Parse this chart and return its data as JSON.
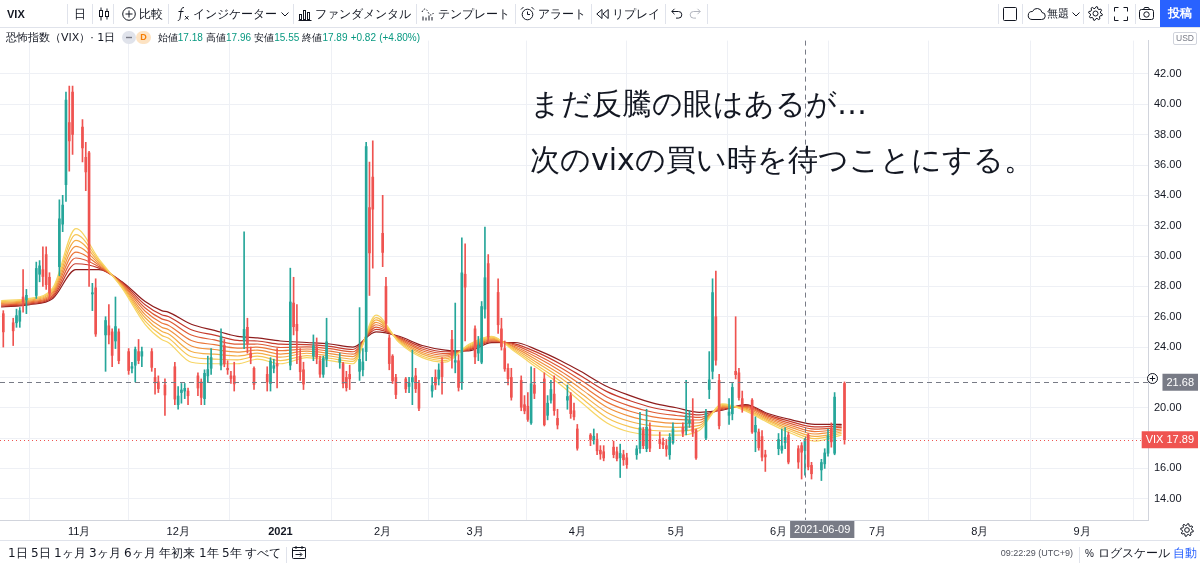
{
  "chart_data": {
    "type": "candlestick",
    "title": "恐怖指数（VIX）· 1日",
    "subtitle": "始値17.18 高値17.96 安値15.55 終値17.89 +0.82 (+4.80%)",
    "x": [
      "2020-10-09",
      "2020-10-12",
      "2020-10-13",
      "2020-10-14",
      "2020-10-15",
      "2020-10-16",
      "2020-10-19",
      "2020-10-20",
      "2020-10-21",
      "2020-10-22",
      "2020-10-23",
      "2020-10-26",
      "2020-10-27",
      "2020-10-28",
      "2020-10-29",
      "2020-10-30",
      "2020-11-02",
      "2020-11-03",
      "2020-11-04",
      "2020-11-05",
      "2020-11-06",
      "2020-11-09",
      "2020-11-10",
      "2020-11-11",
      "2020-11-12",
      "2020-11-13",
      "2020-11-16",
      "2020-11-17",
      "2020-11-18",
      "2020-11-19",
      "2020-11-20",
      "2020-11-23",
      "2020-11-24",
      "2020-11-25",
      "2020-11-27",
      "2020-11-30",
      "2020-12-01",
      "2020-12-02",
      "2020-12-03",
      "2020-12-04",
      "2020-12-07",
      "2020-12-08",
      "2020-12-09",
      "2020-12-10",
      "2020-12-11",
      "2020-12-14",
      "2020-12-15",
      "2020-12-16",
      "2020-12-17",
      "2020-12-18",
      "2020-12-21",
      "2020-12-22",
      "2020-12-23",
      "2020-12-24",
      "2020-12-28",
      "2020-12-29",
      "2020-12-30",
      "2020-12-31",
      "2021-01-04",
      "2021-01-05",
      "2021-01-06",
      "2021-01-07",
      "2021-01-08",
      "2021-01-11",
      "2021-01-12",
      "2021-01-13",
      "2021-01-14",
      "2021-01-15",
      "2021-01-19",
      "2021-01-20",
      "2021-01-21",
      "2021-01-22",
      "2021-01-25",
      "2021-01-26",
      "2021-01-27",
      "2021-01-28",
      "2021-01-29",
      "2021-02-01",
      "2021-02-02",
      "2021-02-03",
      "2021-02-04",
      "2021-02-05",
      "2021-02-08",
      "2021-02-09",
      "2021-02-10",
      "2021-02-11",
      "2021-02-12",
      "2021-02-16",
      "2021-02-17",
      "2021-02-18",
      "2021-02-19",
      "2021-02-22",
      "2021-02-23",
      "2021-02-24",
      "2021-02-25",
      "2021-02-26",
      "2021-03-01",
      "2021-03-02",
      "2021-03-03",
      "2021-03-04",
      "2021-03-05",
      "2021-03-08",
      "2021-03-09",
      "2021-03-10",
      "2021-03-11",
      "2021-03-12",
      "2021-03-15",
      "2021-03-16",
      "2021-03-17",
      "2021-03-18",
      "2021-03-19",
      "2021-03-22",
      "2021-03-23",
      "2021-03-24",
      "2021-03-25",
      "2021-03-26",
      "2021-03-29",
      "2021-03-30",
      "2021-03-31",
      "2021-04-01",
      "2021-04-05",
      "2021-04-06",
      "2021-04-07",
      "2021-04-08",
      "2021-04-09",
      "2021-04-12",
      "2021-04-13",
      "2021-04-14",
      "2021-04-15",
      "2021-04-16",
      "2021-04-19",
      "2021-04-20",
      "2021-04-21",
      "2021-04-22",
      "2021-04-23",
      "2021-04-26",
      "2021-04-27",
      "2021-04-28",
      "2021-04-29",
      "2021-04-30",
      "2021-05-03",
      "2021-05-04",
      "2021-05-05",
      "2021-05-06",
      "2021-05-07",
      "2021-05-10",
      "2021-05-11",
      "2021-05-12",
      "2021-05-13",
      "2021-05-14",
      "2021-05-17",
      "2021-05-18",
      "2021-05-19",
      "2021-05-20",
      "2021-05-21",
      "2021-05-24",
      "2021-05-25",
      "2021-05-26",
      "2021-05-27",
      "2021-05-28",
      "2021-06-01",
      "2021-06-02",
      "2021-06-03",
      "2021-06-04",
      "2021-06-07",
      "2021-06-08",
      "2021-06-09",
      "2021-06-10",
      "2021-06-11",
      "2021-06-14",
      "2021-06-15",
      "2021-06-16",
      "2021-06-17",
      "2021-06-18",
      "2021-06-21"
    ],
    "ohlc": [
      [
        26.2,
        26.4,
        24.0,
        25.0
      ],
      [
        25.6,
        25.9,
        24.1,
        25.07
      ],
      [
        25.6,
        26.5,
        25.3,
        26.07
      ],
      [
        25.7,
        26.6,
        25.3,
        26.4
      ],
      [
        27.3,
        29.1,
        26.3,
        26.97
      ],
      [
        27.1,
        27.8,
        26.2,
        27.41
      ],
      [
        27.4,
        29.6,
        27.2,
        29.18
      ],
      [
        28.8,
        29.7,
        28.3,
        29.35
      ],
      [
        29.1,
        30.6,
        28.0,
        28.65
      ],
      [
        30.1,
        30.6,
        27.8,
        28.11
      ],
      [
        28.6,
        28.9,
        27.2,
        27.55
      ],
      [
        29.3,
        33.7,
        28.7,
        32.46
      ],
      [
        32.1,
        34.0,
        31.6,
        33.35
      ],
      [
        34.7,
        40.8,
        33.6,
        40.28
      ],
      [
        38.8,
        41.2,
        35.6,
        37.59
      ],
      [
        40.8,
        41.2,
        36.7,
        38.02
      ],
      [
        38.5,
        39.0,
        36.2,
        37.13
      ],
      [
        36.5,
        37.5,
        34.3,
        35.55
      ],
      [
        36.8,
        36.9,
        28.0,
        29.57
      ],
      [
        27.5,
        28.2,
        26.4,
        27.58
      ],
      [
        27.9,
        28.5,
        24.7,
        24.86
      ],
      [
        24.8,
        26.0,
        22.4,
        25.75
      ],
      [
        25.4,
        26.8,
        24.2,
        24.8
      ],
      [
        25.0,
        25.2,
        22.7,
        23.45
      ],
      [
        24.4,
        27.3,
        23.9,
        25.35
      ],
      [
        25.0,
        25.2,
        22.9,
        23.1
      ],
      [
        23.7,
        23.9,
        22.2,
        22.45
      ],
      [
        22.6,
        23.0,
        22.3,
        22.71
      ],
      [
        22.8,
        24.0,
        21.7,
        23.84
      ],
      [
        23.7,
        24.5,
        22.9,
        23.11
      ],
      [
        23.4,
        24.0,
        22.7,
        23.7
      ],
      [
        23.7,
        23.9,
        22.4,
        22.66
      ],
      [
        22.0,
        22.6,
        20.9,
        21.64
      ],
      [
        21.7,
        22.1,
        21.0,
        21.25
      ],
      [
        21.5,
        21.9,
        19.5,
        20.84
      ],
      [
        22.7,
        23.0,
        20.2,
        20.57
      ],
      [
        20.2,
        21.4,
        19.9,
        20.77
      ],
      [
        21.0,
        21.6,
        20.3,
        21.17
      ],
      [
        21.1,
        21.6,
        20.6,
        21.28
      ],
      [
        21.1,
        21.3,
        20.2,
        20.79
      ],
      [
        22.1,
        22.3,
        20.8,
        21.3
      ],
      [
        21.7,
        21.9,
        20.2,
        20.68
      ],
      [
        20.6,
        22.5,
        20.2,
        22.27
      ],
      [
        22.1,
        23.4,
        21.7,
        22.52
      ],
      [
        22.6,
        23.9,
        22.2,
        23.31
      ],
      [
        22.8,
        25.2,
        22.5,
        24.72
      ],
      [
        24.1,
        24.5,
        22.7,
        22.89
      ],
      [
        22.6,
        23.1,
        22.2,
        22.5
      ],
      [
        22.1,
        22.4,
        21.6,
        21.93
      ],
      [
        22.1,
        23.0,
        21.1,
        21.57
      ],
      [
        24.4,
        31.6,
        23.9,
        25.16
      ],
      [
        25.3,
        25.9,
        23.6,
        24.23
      ],
      [
        23.6,
        24.0,
        22.9,
        23.31
      ],
      [
        22.6,
        22.7,
        21.2,
        21.53
      ],
      [
        22.2,
        22.7,
        21.1,
        21.7
      ],
      [
        21.6,
        23.3,
        21.1,
        23.08
      ],
      [
        22.6,
        23.2,
        22.3,
        22.77
      ],
      [
        22.9,
        23.9,
        21.3,
        22.75
      ],
      [
        22.8,
        29.2,
        22.5,
        26.97
      ],
      [
        26.9,
        28.6,
        24.8,
        25.34
      ],
      [
        25.5,
        26.8,
        22.9,
        25.07
      ],
      [
        23.4,
        23.9,
        21.8,
        22.37
      ],
      [
        22.5,
        23.0,
        21.2,
        21.56
      ],
      [
        23.4,
        24.8,
        23.1,
        24.08
      ],
      [
        24.0,
        24.6,
        22.9,
        23.33
      ],
      [
        23.1,
        23.4,
        22.0,
        22.21
      ],
      [
        22.2,
        23.4,
        22.0,
        23.25
      ],
      [
        23.2,
        25.9,
        22.7,
        24.34
      ],
      [
        23.0,
        23.6,
        22.6,
        23.24
      ],
      [
        22.9,
        23.0,
        21.3,
        21.58
      ],
      [
        22.0,
        22.4,
        21.1,
        21.32
      ],
      [
        22.2,
        22.8,
        21.2,
        21.91
      ],
      [
        22.4,
        26.6,
        21.8,
        23.19
      ],
      [
        22.5,
        23.9,
        22.1,
        23.02
      ],
      [
        23.7,
        37.5,
        23.1,
        37.21
      ],
      [
        33.2,
        36.2,
        27.4,
        30.21
      ],
      [
        35.2,
        37.6,
        29.2,
        33.09
      ],
      [
        31.5,
        34.0,
        29.3,
        30.24
      ],
      [
        28.0,
        28.6,
        25.1,
        25.56
      ],
      [
        24.6,
        24.8,
        22.5,
        22.91
      ],
      [
        23.4,
        23.5,
        21.6,
        21.77
      ],
      [
        22.0,
        22.2,
        20.6,
        20.87
      ],
      [
        21.9,
        22.0,
        21.0,
        21.24
      ],
      [
        21.4,
        22.0,
        21.0,
        21.63
      ],
      [
        21.7,
        23.8,
        20.2,
        21.99
      ],
      [
        22.1,
        22.6,
        21.0,
        21.25
      ],
      [
        21.6,
        21.8,
        19.8,
        19.97
      ],
      [
        21.1,
        22.0,
        20.7,
        21.46
      ],
      [
        22.0,
        22.5,
        21.2,
        21.5
      ],
      [
        21.9,
        22.9,
        21.5,
        22.49
      ],
      [
        23.0,
        23.3,
        20.9,
        22.05
      ],
      [
        24.5,
        25.1,
        22.6,
        23.45
      ],
      [
        23.0,
        26.9,
        22.3,
        23.11
      ],
      [
        23.1,
        23.5,
        21.1,
        21.34
      ],
      [
        21.7,
        31.2,
        21.2,
        28.89
      ],
      [
        28.8,
        30.8,
        24.4,
        27.95
      ],
      [
        25.2,
        25.4,
        22.9,
        23.35
      ],
      [
        23.6,
        24.7,
        23.1,
        24.1
      ],
      [
        23.0,
        27.0,
        22.9,
        26.67
      ],
      [
        26.5,
        31.9,
        25.9,
        28.57
      ],
      [
        29.5,
        30.1,
        24.4,
        24.66
      ],
      [
        27.6,
        28.5,
        24.9,
        25.47
      ],
      [
        25.2,
        25.9,
        23.8,
        24.03
      ],
      [
        23.9,
        24.4,
        22.4,
        22.56
      ],
      [
        22.6,
        22.9,
        21.5,
        21.91
      ],
      [
        22.0,
        22.6,
        20.5,
        20.69
      ],
      [
        21.8,
        22.1,
        19.8,
        20.03
      ],
      [
        20.2,
        20.8,
        19.6,
        19.79
      ],
      [
        20.1,
        21.0,
        19.1,
        19.23
      ],
      [
        19.0,
        22.7,
        18.9,
        21.58
      ],
      [
        21.5,
        22.6,
        20.6,
        20.95
      ],
      [
        21.9,
        22.3,
        18.8,
        18.88
      ],
      [
        19.5,
        20.8,
        19.2,
        20.3
      ],
      [
        20.5,
        21.8,
        20.3,
        21.2
      ],
      [
        20.9,
        22.1,
        19.5,
        19.81
      ],
      [
        19.3,
        19.9,
        18.6,
        18.86
      ],
      [
        20.5,
        21.5,
        19.9,
        20.74
      ],
      [
        20.8,
        21.0,
        19.3,
        19.61
      ],
      [
        19.8,
        20.3,
        19.2,
        19.4
      ],
      [
        18.6,
        18.9,
        17.2,
        17.33
      ],
      [
        18.2,
        18.3,
        17.5,
        17.91
      ],
      [
        17.9,
        18.6,
        17.6,
        18.12
      ],
      [
        17.9,
        18.3,
        16.9,
        17.16
      ],
      [
        17.2,
        17.5,
        16.6,
        16.95
      ],
      [
        17.1,
        17.5,
        16.5,
        16.69
      ],
      [
        17.4,
        17.8,
        16.7,
        16.91
      ],
      [
        17.1,
        17.4,
        16.5,
        16.65
      ],
      [
        16.7,
        17.6,
        15.4,
        16.99
      ],
      [
        16.9,
        17.2,
        16.2,
        16.57
      ],
      [
        16.7,
        17.0,
        16.0,
        16.25
      ],
      [
        16.9,
        17.5,
        16.6,
        17.29
      ],
      [
        17.3,
        19.7,
        17.0,
        18.68
      ],
      [
        18.5,
        18.7,
        17.3,
        17.5
      ],
      [
        17.3,
        19.9,
        17.1,
        18.71
      ],
      [
        18.6,
        19.0,
        17.1,
        17.33
      ],
      [
        17.9,
        18.4,
        17.3,
        17.64
      ],
      [
        17.7,
        18.0,
        17.3,
        17.56
      ],
      [
        17.5,
        17.9,
        16.8,
        17.28
      ],
      [
        16.9,
        18.3,
        16.6,
        18.05
      ],
      [
        17.7,
        19.0,
        17.6,
        18.61
      ],
      [
        18.7,
        19.0,
        18.1,
        18.31
      ],
      [
        18.5,
        21.8,
        18.2,
        19.48
      ],
      [
        19.0,
        19.8,
        18.7,
        19.15
      ],
      [
        19.2,
        20.6,
        18.1,
        18.39
      ],
      [
        18.5,
        18.6,
        16.6,
        16.69
      ],
      [
        18.0,
        19.9,
        17.9,
        19.66
      ],
      [
        21.2,
        23.7,
        20.6,
        21.84
      ],
      [
        22.4,
        28.5,
        21.9,
        27.59
      ],
      [
        26.0,
        29.0,
        22.8,
        23.13
      ],
      [
        21.8,
        22.2,
        18.6,
        18.81
      ],
      [
        19.5,
        20.6,
        18.9,
        19.72
      ],
      [
        19.6,
        21.6,
        19.2,
        21.34
      ],
      [
        22.4,
        26.0,
        21.9,
        22.18
      ],
      [
        22.3,
        22.6,
        20.5,
        20.67
      ],
      [
        20.6,
        21.1,
        19.7,
        20.15
      ],
      [
        20.5,
        20.6,
        18.3,
        18.4
      ],
      [
        18.4,
        19.4,
        17.1,
        18.84
      ],
      [
        18.4,
        18.6,
        17.2,
        17.36
      ],
      [
        18.1,
        18.5,
        16.5,
        16.74
      ],
      [
        16.9,
        17.2,
        15.8,
        16.76
      ],
      [
        17.3,
        18.3,
        16.9,
        17.9
      ],
      [
        17.2,
        18.6,
        17.0,
        17.48
      ],
      [
        17.7,
        18.7,
        17.3,
        18.04
      ],
      [
        18.2,
        18.4,
        16.3,
        16.42
      ],
      [
        17.3,
        17.5,
        16.0,
        16.42
      ],
      [
        17.5,
        17.7,
        15.3,
        17.07
      ],
      [
        17.18,
        17.96,
        15.55,
        17.89
      ],
      [
        18.2,
        18.3,
        15.9,
        16.1
      ],
      [
        16.2,
        16.4,
        15.3,
        15.65
      ],
      [
        15.9,
        16.6,
        15.2,
        16.39
      ],
      [
        16.3,
        17.3,
        16.0,
        17.02
      ],
      [
        17.0,
        18.6,
        16.8,
        18.15
      ],
      [
        18.6,
        19.0,
        17.4,
        17.75
      ],
      [
        17.0,
        21.0,
        16.9,
        20.7
      ],
      [
        21.6,
        21.7,
        17.6,
        17.89
      ]
    ],
    "colors": [
      "#ef5350",
      "#ef5350",
      "#26a69a",
      "#26a69a",
      "#ef5350",
      "#26a69a",
      "#26a69a",
      "#26a69a",
      "#ef5350",
      "#ef5350",
      "#ef5350",
      "#26a69a",
      "#26a69a",
      "#26a69a",
      "#ef5350",
      "#ef5350",
      "#ef5350",
      "#ef5350",
      "#ef5350",
      "#26a69a",
      "#ef5350",
      "#26a69a",
      "#ef5350",
      "#ef5350",
      "#26a69a",
      "#ef5350",
      "#ef5350",
      "#26a69a",
      "#26a69a",
      "#ef5350",
      "#26a69a",
      "#ef5350",
      "#ef5350",
      "#ef5350",
      "#ef5350",
      "#ef5350",
      "#26a69a",
      "#26a69a",
      "#26a69a",
      "#ef5350",
      "#ef5350",
      "#ef5350",
      "#26a69a",
      "#26a69a",
      "#26a69a",
      "#26a69a",
      "#ef5350",
      "#ef5350",
      "#ef5350",
      "#ef5350",
      "#26a69a",
      "#ef5350",
      "#ef5350",
      "#ef5350",
      "#ef5350",
      "#26a69a",
      "#26a69a",
      "#ef5350",
      "#26a69a",
      "#ef5350",
      "#ef5350",
      "#ef5350",
      "#ef5350",
      "#26a69a",
      "#ef5350",
      "#ef5350",
      "#26a69a",
      "#26a69a",
      "#26a69a",
      "#ef5350",
      "#ef5350",
      "#ef5350",
      "#26a69a",
      "#26a69a",
      "#26a69a",
      "#ef5350",
      "#ef5350",
      "#ef5350",
      "#ef5350",
      "#ef5350",
      "#ef5350",
      "#ef5350",
      "#ef5350",
      "#26a69a",
      "#26a69a",
      "#ef5350",
      "#ef5350",
      "#26a69a",
      "#ef5350",
      "#26a69a",
      "#ef5350",
      "#ef5350",
      "#26a69a",
      "#ef5350",
      "#26a69a",
      "#ef5350",
      "#ef5350",
      "#26a69a",
      "#26a69a",
      "#26a69a",
      "#ef5350",
      "#ef5350",
      "#ef5350",
      "#ef5350",
      "#ef5350",
      "#ef5350",
      "#ef5350",
      "#ef5350",
      "#ef5350",
      "#26a69a",
      "#ef5350",
      "#ef5350",
      "#26a69a",
      "#26a69a",
      "#ef5350",
      "#ef5350",
      "#26a69a",
      "#ef5350",
      "#ef5350",
      "#ef5350",
      "#ef5350",
      "#26a69a",
      "#ef5350",
      "#ef5350",
      "#ef5350",
      "#ef5350",
      "#ef5350",
      "#26a69a",
      "#ef5350",
      "#ef5350",
      "#26a69a",
      "#26a69a",
      "#ef5350",
      "#26a69a",
      "#ef5350",
      "#ef5350",
      "#ef5350",
      "#ef5350",
      "#26a69a",
      "#26a69a",
      "#ef5350",
      "#26a69a",
      "#26a69a",
      "#ef5350",
      "#ef5350",
      "#26a69a",
      "#26a69a",
      "#26a69a",
      "#ef5350",
      "#ef5350",
      "#26a69a",
      "#26a69a",
      "#ef5350",
      "#ef5350",
      "#ef5350",
      "#ef5350",
      "#26a69a",
      "#ef5350",
      "#ef5350",
      "#ef5350",
      "#26a69a",
      "#26a69a",
      "#26a69a",
      "#ef5350",
      "#ef5350",
      "#ef5350",
      "#26a69a",
      "#ef5350",
      "#ef5350",
      "#26a69a",
      "#26a69a",
      "#26a69a",
      "#ef5350",
      "#26a69a",
      "#ef5350"
    ],
    "series": [
      {
        "type": "line",
        "color": "#f7d564",
        "x": [
          "2020-10-08T12:00",
          "2020-10-17",
          "2020-10-24",
          "2020-10-31",
          "2020-11-07",
          "2020-11-14",
          "2020-11-21",
          "2020-11-26",
          "2020-11-28",
          "2020-12-05",
          "2020-12-12",
          "2020-12-19",
          "2020-12-25",
          "2021-01-01",
          "2021-01-09",
          "2021-01-16",
          "2021-01-23",
          "2021-01-30",
          "2021-02-06",
          "2021-02-13",
          "2021-02-20",
          "2021-02-27",
          "2021-03-06",
          "2021-03-13",
          "2021-03-20",
          "2021-03-27",
          "2021-04-02",
          "2021-04-10",
          "2021-04-17",
          "2021-04-24",
          "2021-05-01",
          "2021-05-08",
          "2021-05-15",
          "2021-05-22",
          "2021-05-29",
          "2021-06-05",
          "2021-06-12",
          "2021-06-20"
        ],
        "values": [
          27.06,
          27.21,
          27.9,
          31.8,
          29.8,
          27.89,
          25.5,
          24.5,
          24.3,
          23.0,
          22.9,
          22.9,
          23.2,
          22.9,
          23.3,
          23.1,
          22.9,
          26.1,
          24.29,
          23.3,
          23.0,
          24.16,
          24.71,
          23.7,
          22.6,
          21.5,
          20.4,
          19.0,
          18.4,
          18.2,
          18.2,
          18.5,
          20.26,
          19.79,
          19.0,
          18.3,
          17.8,
          18.2
        ]
      },
      {
        "type": "line",
        "color": "#f6c453",
        "x": [
          "2020-10-08T12:00",
          "2020-10-17",
          "2020-10-24",
          "2020-10-31",
          "2020-11-07",
          "2020-11-14",
          "2020-11-21",
          "2020-11-26",
          "2020-11-28",
          "2020-12-05",
          "2020-12-12",
          "2020-12-19",
          "2020-12-25",
          "2021-01-01",
          "2021-01-09",
          "2021-01-16",
          "2021-01-23",
          "2021-01-30",
          "2021-02-06",
          "2021-02-13",
          "2021-02-20",
          "2021-02-27",
          "2021-03-06",
          "2021-03-13",
          "2021-03-20",
          "2021-03-27",
          "2021-04-02",
          "2021-04-10",
          "2021-04-17",
          "2021-04-24",
          "2021-05-01",
          "2021-05-08",
          "2021-05-15",
          "2021-05-22",
          "2021-05-29",
          "2021-06-05",
          "2021-06-12",
          "2021-06-20"
        ],
        "values": [
          27.0,
          27.15,
          27.8,
          31.41,
          29.7,
          27.95,
          25.71,
          24.77,
          24.59,
          23.36,
          23.21,
          23.16,
          23.4,
          23.11,
          23.44,
          23.26,
          23.06,
          25.94,
          24.35,
          23.41,
          23.11,
          24.1,
          24.65,
          23.79,
          22.77,
          21.73,
          20.69,
          19.34,
          18.74,
          18.5,
          18.46,
          18.67,
          20.2,
          19.85,
          19.09,
          18.43,
          17.96,
          18.3
        ]
      },
      {
        "type": "line",
        "color": "#f4ad47",
        "x": [
          "2020-10-08T12:00",
          "2020-10-17",
          "2020-10-24",
          "2020-10-31",
          "2020-11-07",
          "2020-11-14",
          "2020-11-21",
          "2020-11-26",
          "2020-11-28",
          "2020-12-05",
          "2020-12-12",
          "2020-12-19",
          "2020-12-25",
          "2021-01-01",
          "2021-01-09",
          "2021-01-16",
          "2021-01-23",
          "2021-01-30",
          "2021-02-06",
          "2021-02-13",
          "2021-02-20",
          "2021-02-27",
          "2021-03-06",
          "2021-03-13",
          "2021-03-20",
          "2021-03-27",
          "2021-04-02",
          "2021-04-10",
          "2021-04-17",
          "2021-04-24",
          "2021-05-01",
          "2021-05-08",
          "2021-05-15",
          "2021-05-22",
          "2021-05-29",
          "2021-06-05",
          "2021-06-12",
          "2021-06-20"
        ],
        "values": [
          26.94,
          27.09,
          27.7,
          31.03,
          29.6,
          28.01,
          25.93,
          25.04,
          24.87,
          23.71,
          23.53,
          23.41,
          23.6,
          23.33,
          23.59,
          23.41,
          23.21,
          25.79,
          24.41,
          23.53,
          23.23,
          24.04,
          24.59,
          23.87,
          22.94,
          21.96,
          20.97,
          19.69,
          19.09,
          18.8,
          18.71,
          18.84,
          20.14,
          19.91,
          19.17,
          18.56,
          18.11,
          18.4
        ]
      },
      {
        "type": "line",
        "color": "#f0923e",
        "x": [
          "2020-10-08T12:00",
          "2020-10-17",
          "2020-10-24",
          "2020-10-31",
          "2020-11-07",
          "2020-11-14",
          "2020-11-21",
          "2020-11-26",
          "2020-11-28",
          "2020-12-05",
          "2020-12-12",
          "2020-12-19",
          "2020-12-25",
          "2021-01-01",
          "2021-01-09",
          "2021-01-16",
          "2021-01-23",
          "2021-01-30",
          "2021-02-06",
          "2021-02-13",
          "2021-02-20",
          "2021-02-27",
          "2021-03-06",
          "2021-03-13",
          "2021-03-20",
          "2021-03-27",
          "2021-04-02",
          "2021-04-10",
          "2021-04-17",
          "2021-04-24",
          "2021-05-01",
          "2021-05-08",
          "2021-05-15",
          "2021-05-22",
          "2021-05-29",
          "2021-06-05",
          "2021-06-12",
          "2021-06-20"
        ],
        "values": [
          26.88,
          27.03,
          27.6,
          30.64,
          29.5,
          28.07,
          26.14,
          25.31,
          25.16,
          24.07,
          23.84,
          23.67,
          23.8,
          23.54,
          23.73,
          23.57,
          23.37,
          25.63,
          24.47,
          23.64,
          23.34,
          23.98,
          24.53,
          23.96,
          23.11,
          22.19,
          21.26,
          20.03,
          19.43,
          19.1,
          18.97,
          19.01,
          20.08,
          19.97,
          19.26,
          18.69,
          18.27,
          18.5
        ]
      },
      {
        "type": "line",
        "color": "#ea763a",
        "x": [
          "2020-10-08T12:00",
          "2020-10-17",
          "2020-10-24",
          "2020-10-31",
          "2020-11-07",
          "2020-11-14",
          "2020-11-21",
          "2020-11-26",
          "2020-11-28",
          "2020-12-05",
          "2020-12-12",
          "2020-12-19",
          "2020-12-25",
          "2021-01-01",
          "2021-01-09",
          "2021-01-16",
          "2021-01-23",
          "2021-01-30",
          "2021-02-06",
          "2021-02-13",
          "2021-02-20",
          "2021-02-27",
          "2021-03-06",
          "2021-03-13",
          "2021-03-20",
          "2021-03-27",
          "2021-04-02",
          "2021-04-10",
          "2021-04-17",
          "2021-04-24",
          "2021-05-01",
          "2021-05-08",
          "2021-05-15",
          "2021-05-22",
          "2021-05-29",
          "2021-06-05",
          "2021-06-12",
          "2021-06-20"
        ],
        "values": [
          26.82,
          26.97,
          27.5,
          30.26,
          29.4,
          28.13,
          26.36,
          25.59,
          25.44,
          24.43,
          24.16,
          23.93,
          24.0,
          23.76,
          23.87,
          23.73,
          23.53,
          25.47,
          24.53,
          23.76,
          23.46,
          23.92,
          24.47,
          24.04,
          23.29,
          22.41,
          21.54,
          20.37,
          19.77,
          19.4,
          19.23,
          19.19,
          20.02,
          20.03,
          19.34,
          18.81,
          18.43,
          18.6
        ]
      },
      {
        "type": "line",
        "color": "#de5a35",
        "x": [
          "2020-10-08T12:00",
          "2020-10-17",
          "2020-10-24",
          "2020-10-31",
          "2020-11-07",
          "2020-11-14",
          "2020-11-21",
          "2020-11-26",
          "2020-11-28",
          "2020-12-05",
          "2020-12-12",
          "2020-12-19",
          "2020-12-25",
          "2021-01-01",
          "2021-01-09",
          "2021-01-16",
          "2021-01-23",
          "2021-01-30",
          "2021-02-06",
          "2021-02-13",
          "2021-02-20",
          "2021-02-27",
          "2021-03-06",
          "2021-03-13",
          "2021-03-20",
          "2021-03-27",
          "2021-04-02",
          "2021-04-10",
          "2021-04-17",
          "2021-04-24",
          "2021-05-01",
          "2021-05-08",
          "2021-05-15",
          "2021-05-22",
          "2021-05-29",
          "2021-06-05",
          "2021-06-12",
          "2021-06-20"
        ],
        "values": [
          26.76,
          26.91,
          27.4,
          29.87,
          29.3,
          28.19,
          26.57,
          25.86,
          25.73,
          24.79,
          24.47,
          24.19,
          24.2,
          23.97,
          24.01,
          23.89,
          23.69,
          25.31,
          24.59,
          23.87,
          23.57,
          23.86,
          24.41,
          24.13,
          23.46,
          22.64,
          21.83,
          20.71,
          20.11,
          19.7,
          19.49,
          19.36,
          19.96,
          20.09,
          19.43,
          18.94,
          18.59,
          18.7
        ]
      },
      {
        "type": "line",
        "color": "#c53a2c",
        "x": [
          "2020-10-08T12:00",
          "2020-10-17",
          "2020-10-24",
          "2020-10-31",
          "2020-11-07",
          "2020-11-14",
          "2020-11-21",
          "2020-11-26",
          "2020-11-28",
          "2020-12-05",
          "2020-12-12",
          "2020-12-19",
          "2020-12-25",
          "2021-01-01",
          "2021-01-09",
          "2021-01-16",
          "2021-01-23",
          "2021-01-30",
          "2021-02-06",
          "2021-02-13",
          "2021-02-20",
          "2021-02-27",
          "2021-03-06",
          "2021-03-13",
          "2021-03-20",
          "2021-03-27",
          "2021-04-02",
          "2021-04-10",
          "2021-04-17",
          "2021-04-24",
          "2021-05-01",
          "2021-05-08",
          "2021-05-15",
          "2021-05-22",
          "2021-05-29",
          "2021-06-05",
          "2021-06-12",
          "2021-06-20"
        ],
        "values": [
          26.7,
          26.85,
          27.3,
          29.49,
          29.2,
          28.25,
          26.79,
          26.13,
          26.01,
          25.14,
          24.79,
          24.44,
          24.4,
          24.19,
          24.16,
          24.04,
          23.84,
          25.16,
          24.65,
          23.99,
          23.69,
          23.8,
          24.35,
          24.21,
          23.63,
          22.87,
          22.11,
          21.06,
          20.46,
          20.0,
          19.74,
          19.53,
          19.9,
          20.15,
          19.51,
          19.07,
          18.74,
          18.8
        ]
      },
      {
        "type": "line",
        "color": "#8f1d1d",
        "x": [
          "2020-10-08T12:00",
          "2020-10-17",
          "2020-10-24",
          "2020-10-31",
          "2020-11-07",
          "2020-11-14",
          "2020-11-21",
          "2020-11-26",
          "2020-11-28",
          "2020-12-05",
          "2020-12-12",
          "2020-12-19",
          "2020-12-25",
          "2021-01-01",
          "2021-01-09",
          "2021-01-16",
          "2021-01-23",
          "2021-01-30",
          "2021-02-06",
          "2021-02-13",
          "2021-02-20",
          "2021-02-27",
          "2021-03-06",
          "2021-03-13",
          "2021-03-20",
          "2021-03-27",
          "2021-04-02",
          "2021-04-10",
          "2021-04-17",
          "2021-04-24",
          "2021-05-01",
          "2021-05-08",
          "2021-05-15",
          "2021-05-22",
          "2021-05-29",
          "2021-06-05",
          "2021-06-12",
          "2021-06-20"
        ],
        "values": [
          26.64,
          26.79,
          27.2,
          29.1,
          29.1,
          28.31,
          27.0,
          26.4,
          26.3,
          25.5,
          25.1,
          24.7,
          24.6,
          24.4,
          24.3,
          24.2,
          24.0,
          25.0,
          24.71,
          24.1,
          23.8,
          23.74,
          24.29,
          24.3,
          23.8,
          23.1,
          22.4,
          21.4,
          20.8,
          20.3,
          20.0,
          19.7,
          19.84,
          20.21,
          19.6,
          19.2,
          18.9,
          18.9
        ]
      }
    ],
    "xlim": [
      "2020-10-08",
      "2021-09-21"
    ],
    "xticks": [
      {
        "value": "2020-11-01",
        "label": "11月"
      },
      {
        "value": "2020-12-01",
        "label": "12月"
      },
      {
        "value": "2021-01-01",
        "label": "2021"
      },
      {
        "value": "2021-02-01",
        "label": "2月"
      },
      {
        "value": "2021-03-01",
        "label": "3月"
      },
      {
        "value": "2021-04-01",
        "label": "4月"
      },
      {
        "value": "2021-05-01",
        "label": "5月"
      },
      {
        "value": "2021-06-01",
        "label": "6月"
      },
      {
        "value": "2021-07-01",
        "label": "7月"
      },
      {
        "value": "2021-08-01",
        "label": "8月"
      },
      {
        "value": "2021-09-01",
        "label": "9月"
      }
    ],
    "ylim": [
      12.6,
      44.2
    ],
    "yticks": [
      {
        "value": 14,
        "label": "14.00"
      },
      {
        "value": 16,
        "label": "16.00"
      },
      {
        "value": 18,
        "label": null
      },
      {
        "value": 20,
        "label": "20.00"
      },
      {
        "value": 22,
        "label": null
      },
      {
        "value": 24,
        "label": "24.00"
      },
      {
        "value": 26,
        "label": "26.00"
      },
      {
        "value": 28,
        "label": "28.00"
      },
      {
        "value": 30,
        "label": "30.00"
      },
      {
        "value": 32,
        "label": "32.00"
      },
      {
        "value": 34,
        "label": "34.00"
      },
      {
        "value": 36,
        "label": "36.00"
      },
      {
        "value": 38,
        "label": "38.00"
      },
      {
        "value": 40,
        "label": "40.00"
      },
      {
        "value": 42,
        "label": "42.00"
      }
    ],
    "grid": true,
    "ref_lines": [
      {
        "axis": "y",
        "value": 21.68,
        "label": "21.68",
        "color": "#787b86",
        "line_style": "dashed"
      },
      {
        "axis": "y",
        "value": 17.89,
        "label": "VIX 17.89",
        "color": "#ef5350",
        "line_style": "dotted"
      },
      {
        "axis": "x",
        "value": "2021-06-09",
        "label": "2021-06-09",
        "color": "#787b86",
        "line_style": "dashed"
      }
    ],
    "annotations": [
      "まだ反騰の眼はあるが…",
      "次のvixの買い時を待つことにする。",
      "VIX",
      "日",
      "比較",
      "インジケーター",
      "ファンダメンタル",
      "テンプレート",
      "アラート",
      "リプレイ",
      "無題",
      "投稿",
      "D",
      "USD",
      "1日",
      "5日",
      "1ヶ月",
      "3ヶ月",
      "6ヶ月",
      "年初来",
      "1年",
      "5年",
      "すべて",
      "09:22:29 (UTC+9)",
      "%",
      "ログスケール",
      "自動"
    ]
  }
}
